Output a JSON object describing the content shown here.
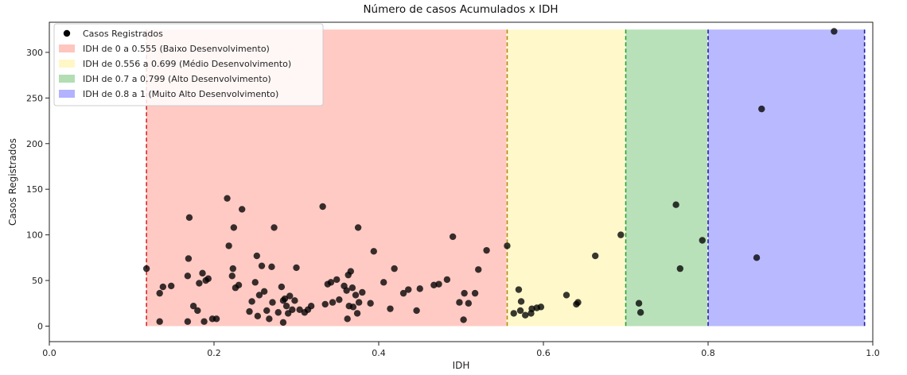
{
  "chart_data": {
    "type": "scatter",
    "title": "Número de casos Acumulados x IDH",
    "xlabel": "IDH",
    "ylabel": "Casos Registrados",
    "xlim": [
      0.0,
      1.0
    ],
    "ylim": [
      -17,
      333
    ],
    "xticks": [
      0.0,
      0.2,
      0.4,
      0.6,
      0.8,
      1.0
    ],
    "xtick_labels": [
      "0.0",
      "0.2",
      "0.4",
      "0.6",
      "0.8",
      "1.0"
    ],
    "yticks": [
      0,
      50,
      100,
      150,
      200,
      250,
      300
    ],
    "ytick_labels": [
      "0",
      "50",
      "100",
      "150",
      "200",
      "250",
      "300"
    ],
    "grid": false,
    "legend_position": "top-left",
    "bands": [
      {
        "name": "IDH de 0 a 0.555 (Baixo Desenvolvimento)",
        "x0": 0.118,
        "x1": 0.555,
        "y1": 325,
        "color": "#ff9f94",
        "line_color": "#d62728"
      },
      {
        "name": "IDH de 0.556 a 0.699 (Médio Desenvolvimento)",
        "x0": 0.556,
        "x1": 0.699,
        "y1": 325,
        "color": "#fff2a0",
        "line_color": "#b8860b"
      },
      {
        "name": "IDH de 0.7 a 0.799 (Alto Desenvolvimento)",
        "x0": 0.7,
        "x1": 0.799,
        "y1": 325,
        "color": "#80c880",
        "line_color": "#2ca02c"
      },
      {
        "name": "IDH de 0.8 a  1 (Muito Alto Desenvolvimento)",
        "x0": 0.8,
        "x1": 0.99,
        "y1": 325,
        "color": "#7f7fff",
        "line_color": "#1f1f9f"
      }
    ],
    "series": [
      {
        "name": "Casos Registrados",
        "color": "#000000",
        "points": [
          [
            0.118,
            63
          ],
          [
            0.134,
            5
          ],
          [
            0.134,
            36
          ],
          [
            0.138,
            43
          ],
          [
            0.148,
            44
          ],
          [
            0.168,
            5
          ],
          [
            0.168,
            55
          ],
          [
            0.169,
            74
          ],
          [
            0.17,
            119
          ],
          [
            0.175,
            22
          ],
          [
            0.18,
            17
          ],
          [
            0.182,
            47
          ],
          [
            0.186,
            58
          ],
          [
            0.188,
            5
          ],
          [
            0.19,
            50
          ],
          [
            0.193,
            52
          ],
          [
            0.198,
            8
          ],
          [
            0.203,
            8
          ],
          [
            0.216,
            140
          ],
          [
            0.218,
            88
          ],
          [
            0.222,
            55
          ],
          [
            0.223,
            63
          ],
          [
            0.224,
            108
          ],
          [
            0.226,
            42
          ],
          [
            0.23,
            45
          ],
          [
            0.234,
            128
          ],
          [
            0.243,
            16
          ],
          [
            0.246,
            27
          ],
          [
            0.25,
            48
          ],
          [
            0.252,
            77
          ],
          [
            0.253,
            11
          ],
          [
            0.255,
            34
          ],
          [
            0.258,
            66
          ],
          [
            0.261,
            38
          ],
          [
            0.264,
            17
          ],
          [
            0.267,
            8
          ],
          [
            0.27,
            65
          ],
          [
            0.271,
            26
          ],
          [
            0.273,
            108
          ],
          [
            0.278,
            15
          ],
          [
            0.282,
            43
          ],
          [
            0.284,
            28
          ],
          [
            0.284,
            4
          ],
          [
            0.286,
            30
          ],
          [
            0.288,
            22
          ],
          [
            0.29,
            14
          ],
          [
            0.292,
            33
          ],
          [
            0.295,
            18
          ],
          [
            0.298,
            28
          ],
          [
            0.3,
            64
          ],
          [
            0.304,
            18
          ],
          [
            0.31,
            15
          ],
          [
            0.314,
            18
          ],
          [
            0.318,
            22
          ],
          [
            0.332,
            131
          ],
          [
            0.335,
            24
          ],
          [
            0.338,
            46
          ],
          [
            0.342,
            48
          ],
          [
            0.344,
            26
          ],
          [
            0.349,
            51
          ],
          [
            0.352,
            29
          ],
          [
            0.358,
            44
          ],
          [
            0.361,
            39
          ],
          [
            0.362,
            8
          ],
          [
            0.363,
            56
          ],
          [
            0.364,
            22
          ],
          [
            0.366,
            60
          ],
          [
            0.368,
            42
          ],
          [
            0.369,
            21
          ],
          [
            0.372,
            34
          ],
          [
            0.374,
            14
          ],
          [
            0.375,
            108
          ],
          [
            0.376,
            26
          ],
          [
            0.38,
            37
          ],
          [
            0.39,
            25
          ],
          [
            0.394,
            82
          ],
          [
            0.406,
            48
          ],
          [
            0.414,
            19
          ],
          [
            0.419,
            63
          ],
          [
            0.43,
            36
          ],
          [
            0.436,
            40
          ],
          [
            0.446,
            17
          ],
          [
            0.45,
            41
          ],
          [
            0.467,
            45
          ],
          [
            0.473,
            46
          ],
          [
            0.483,
            51
          ],
          [
            0.49,
            98
          ],
          [
            0.498,
            26
          ],
          [
            0.503,
            7
          ],
          [
            0.504,
            36
          ],
          [
            0.509,
            25
          ],
          [
            0.517,
            36
          ],
          [
            0.521,
            62
          ],
          [
            0.531,
            83
          ],
          [
            0.556,
            88
          ],
          [
            0.564,
            14
          ],
          [
            0.57,
            40
          ],
          [
            0.572,
            17
          ],
          [
            0.573,
            27
          ],
          [
            0.578,
            12
          ],
          [
            0.585,
            14
          ],
          [
            0.586,
            19
          ],
          [
            0.592,
            20
          ],
          [
            0.597,
            21
          ],
          [
            0.628,
            34
          ],
          [
            0.64,
            24
          ],
          [
            0.642,
            26
          ],
          [
            0.663,
            77
          ],
          [
            0.694,
            100
          ],
          [
            0.716,
            25
          ],
          [
            0.718,
            15
          ],
          [
            0.761,
            133
          ],
          [
            0.766,
            63
          ],
          [
            0.793,
            94
          ],
          [
            0.859,
            75
          ],
          [
            0.865,
            238
          ],
          [
            0.953,
            323
          ]
        ]
      }
    ]
  }
}
